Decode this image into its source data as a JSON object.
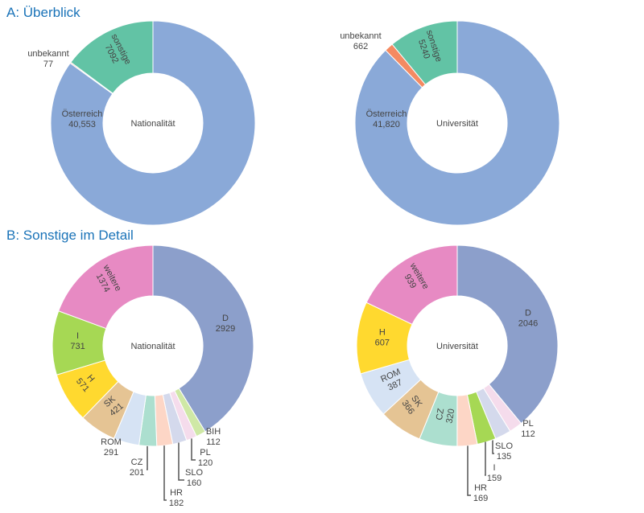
{
  "sections": {
    "a_title": "A: Überblick",
    "b_title": "B: Sonstige im Detail"
  },
  "chart_data": [
    {
      "type": "pie",
      "variant": "donut",
      "center_label": "Nationalität",
      "categories": [
        "Österreich",
        "unbekannt",
        "sonstige"
      ],
      "values": [
        40553,
        77,
        7092
      ],
      "value_labels": [
        "40,553",
        "77",
        "7092"
      ],
      "colors": [
        "#8aa9d8",
        "#f48a62",
        "#62c3a5"
      ]
    },
    {
      "type": "pie",
      "variant": "donut",
      "center_label": "Universität",
      "categories": [
        "Österreich",
        "unbekannt",
        "sonstige"
      ],
      "values": [
        41820,
        662,
        5240
      ],
      "value_labels": [
        "41,820",
        "662",
        "5240"
      ],
      "colors": [
        "#8aa9d8",
        "#f48a62",
        "#62c3a5"
      ]
    },
    {
      "type": "pie",
      "variant": "donut",
      "center_label": "Nationalität",
      "categories": [
        "D",
        "BIH",
        "PL",
        "SLO",
        "HR",
        "CZ",
        "ROM",
        "SK",
        "H",
        "I",
        "weitere"
      ],
      "values": [
        2929,
        112,
        120,
        160,
        182,
        201,
        291,
        421,
        571,
        731,
        1374
      ],
      "colors": [
        "#8c9fcb",
        "#cfe8a6",
        "#f5dcec",
        "#d4d9ec",
        "#fdd6c6",
        "#acdfcf",
        "#d6e3f4",
        "#e5c494",
        "#ffd92f",
        "#a6d854",
        "#e78ac3"
      ]
    },
    {
      "type": "pie",
      "variant": "donut",
      "center_label": "Universität",
      "categories": [
        "D",
        "PL",
        "SLO",
        "I",
        "HR",
        "CZ",
        "SK",
        "ROM",
        "H",
        "weitere"
      ],
      "values": [
        2046,
        112,
        135,
        159,
        169,
        320,
        366,
        387,
        607,
        939
      ],
      "colors": [
        "#8c9fcb",
        "#f5dcec",
        "#d4d9ec",
        "#a6d854",
        "#fdd6c6",
        "#acdfcf",
        "#e5c494",
        "#d6e3f4",
        "#ffd92f",
        "#e78ac3"
      ]
    }
  ]
}
